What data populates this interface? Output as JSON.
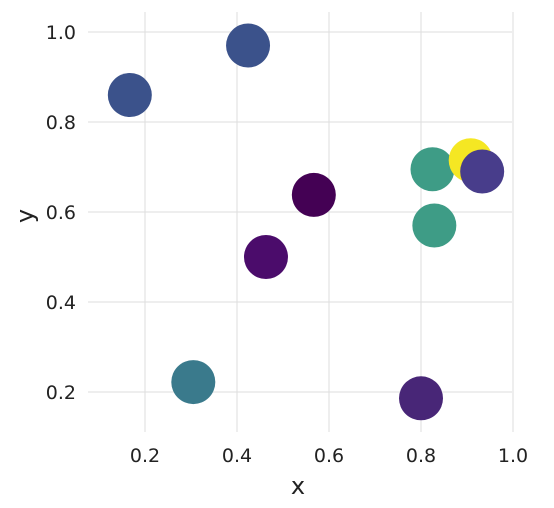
{
  "chart_data": {
    "type": "scatter",
    "title": "",
    "xlabel": "x",
    "ylabel": "y",
    "xlim": [
      0.1,
      1.0
    ],
    "ylim": [
      0.12,
      1.04
    ],
    "xticks": [
      0.2,
      0.4,
      0.6,
      0.8,
      1.0
    ],
    "xtick_labels": [
      "0.2",
      "0.4",
      "0.6",
      "0.8",
      "1.0"
    ],
    "yticks": [
      0.2,
      0.4,
      0.6,
      0.8,
      1.0
    ],
    "ytick_labels": [
      "0.2",
      "0.4",
      "0.6",
      "0.8",
      "1.0"
    ],
    "grid": true,
    "legend": "none",
    "colormap": "viridis",
    "points": [
      {
        "x": 0.167,
        "y": 0.86,
        "color": "#3b528b"
      },
      {
        "x": 0.424,
        "y": 0.97,
        "color": "#3b528b"
      },
      {
        "x": 0.567,
        "y": 0.638,
        "color": "#440154"
      },
      {
        "x": 0.463,
        "y": 0.5,
        "color": "#4b0c6b"
      },
      {
        "x": 0.305,
        "y": 0.222,
        "color": "#3a7a8c"
      },
      {
        "x": 0.8,
        "y": 0.186,
        "color": "#482677"
      },
      {
        "x": 0.825,
        "y": 0.695,
        "color": "#3e9c86"
      },
      {
        "x": 0.829,
        "y": 0.57,
        "color": "#3e9c86"
      },
      {
        "x": 0.908,
        "y": 0.715,
        "color": "#f5e723"
      },
      {
        "x": 0.933,
        "y": 0.69,
        "color": "#483d8b"
      }
    ]
  }
}
